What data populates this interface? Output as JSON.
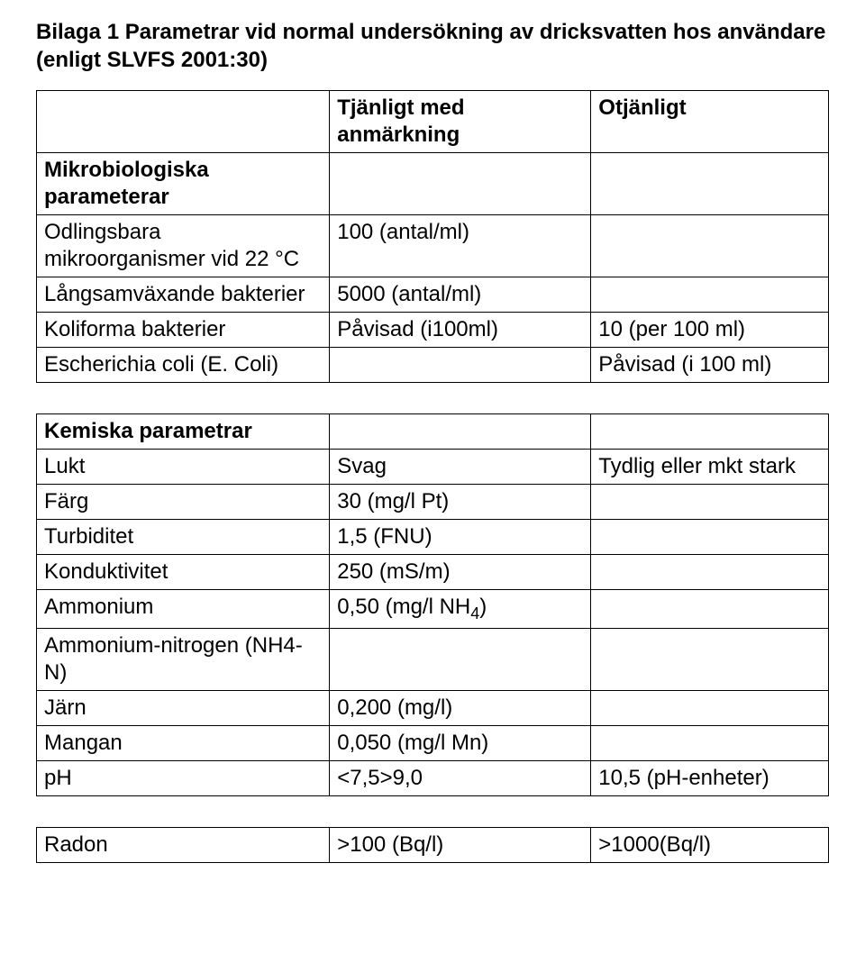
{
  "title": "Bilaga 1 Parametrar vid normal undersökning av dricksvatten hos användare (enligt SLVFS 2001:30)",
  "headers": {
    "col2": "Tjänligt med anmärkning",
    "col3": "Otjänligt"
  },
  "micro_section": "Mikrobiologiska parameterar",
  "micro_rows": [
    {
      "name_html": "Odlingsbara mikroorganismer vid 22 <span class=\"degree\">°</span>C",
      "c2": "100 (antal/ml)",
      "c3": ""
    },
    {
      "name_html": "Långsamväxande bakterier",
      "c2": "5000 (antal/ml)",
      "c3": ""
    },
    {
      "name_html": "Koliforma bakterier",
      "c2": "Påvisad (i100ml)",
      "c3": "10 (per 100 ml)"
    },
    {
      "name_html": "Escherichia coli (E. Coli)",
      "c2": "",
      "c3": "Påvisad (i 100 ml)"
    }
  ],
  "chem_section": "Kemiska parametrar",
  "chem_rows": [
    {
      "name_html": "Lukt",
      "c2": "Svag",
      "c3": "Tydlig eller mkt stark"
    },
    {
      "name_html": "Färg",
      "c2": "30 (mg/l Pt)",
      "c3": ""
    },
    {
      "name_html": "Turbiditet",
      "c2": "1,5 (FNU)",
      "c3": ""
    },
    {
      "name_html": "Konduktivitet",
      "c2": "250 (mS/m)",
      "c3": ""
    },
    {
      "name_html": "Ammonium",
      "c2_html": "0,50 (mg/l NH<sub>4</sub>)",
      "c3": ""
    },
    {
      "name_html": "Ammonium-nitrogen (NH4-N)",
      "c2": "",
      "c3": ""
    },
    {
      "name_html": "Järn",
      "c2": "0,200 (mg/l)",
      "c3": ""
    },
    {
      "name_html": "Mangan",
      "c2": "0,050 (mg/l Mn)",
      "c3": ""
    },
    {
      "name_html": "pH",
      "c2": "<7,5>9,0",
      "c3": "10,5 (pH-enheter)"
    }
  ],
  "radon": {
    "name": "Radon",
    "c2": ">100 (Bq/l)",
    "c3": ">1000(Bq/l)"
  }
}
